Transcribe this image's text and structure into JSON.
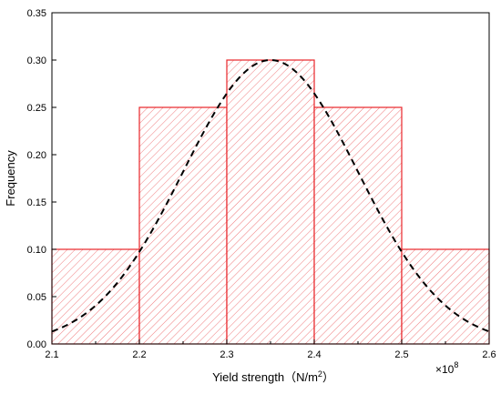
{
  "chart_data": {
    "type": "bar",
    "title": "",
    "xlabel": "Yield strength（N/m",
    "xlabel_sup": "2",
    "xlabel_close": "）",
    "ylabel": "Frequency",
    "x_multiplier": "×10",
    "x_multiplier_exp": "8",
    "xlim": [
      2.1,
      2.6
    ],
    "ylim": [
      0,
      0.35
    ],
    "xticks": [
      "2.1",
      "2.2",
      "2.3",
      "2.4",
      "2.5",
      "2.6"
    ],
    "yticks": [
      "0.00",
      "0.05",
      "0.10",
      "0.15",
      "0.20",
      "0.25",
      "0.30",
      "0.35"
    ],
    "bins": [
      {
        "start": 2.1,
        "end": 2.2,
        "value": 0.1
      },
      {
        "start": 2.2,
        "end": 2.3,
        "value": 0.25
      },
      {
        "start": 2.3,
        "end": 2.4,
        "value": 0.3
      },
      {
        "start": 2.4,
        "end": 2.5,
        "value": 0.25
      },
      {
        "start": 2.5,
        "end": 2.6,
        "value": 0.1
      }
    ],
    "fit": {
      "type": "normal",
      "mean": 2.35,
      "sd": 0.1,
      "peak": 0.3
    },
    "bar_color": "#e8262a",
    "curve_color": "#000000",
    "grid": false,
    "legend": "none"
  }
}
